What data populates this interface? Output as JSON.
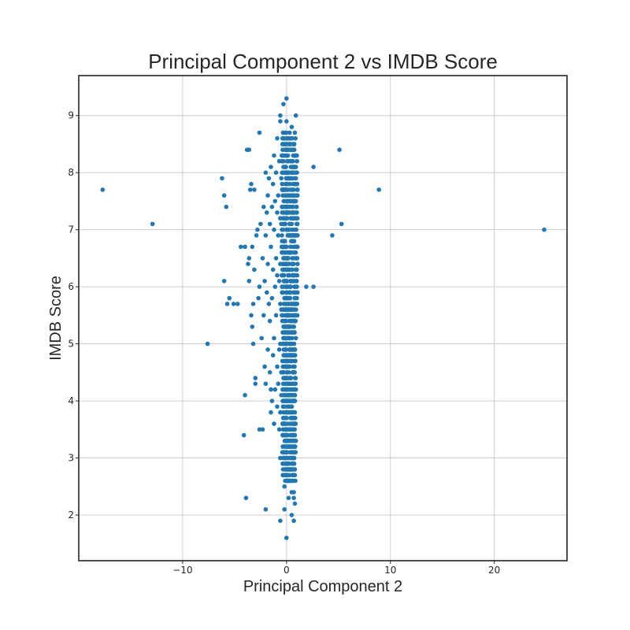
{
  "chart_data": {
    "type": "scatter",
    "title": "Principal Component 2 vs IMDB Score",
    "xlabel": "Principal Component 2",
    "ylabel": "IMDB Score",
    "xlim": [
      -20,
      27
    ],
    "ylim": [
      1.2,
      9.7
    ],
    "xticks": [
      -10,
      0,
      10,
      20
    ],
    "xtick_labels": [
      "−10",
      "0",
      "10",
      "20"
    ],
    "yticks": [
      2,
      3,
      4,
      5,
      6,
      7,
      8,
      9
    ],
    "ytick_labels": [
      "2",
      "3",
      "4",
      "5",
      "6",
      "7",
      "8",
      "9"
    ],
    "grid": true,
    "marker_color": "#1f77b4",
    "series": [
      {
        "points": [
          [
            -17.7,
            7.7
          ],
          [
            -12.9,
            7.1
          ],
          [
            -7.6,
            5.0
          ],
          [
            24.8,
            7.0
          ],
          [
            8.9,
            7.7
          ],
          [
            5.3,
            7.1
          ],
          [
            5.1,
            8.4
          ],
          [
            4.4,
            6.9
          ],
          [
            2.6,
            8.1
          ],
          [
            2.6,
            6.0
          ],
          [
            1.9,
            6.0
          ],
          [
            -6.2,
            7.9
          ],
          [
            -6.0,
            7.6
          ],
          [
            -5.8,
            7.4
          ],
          [
            -6.0,
            6.1
          ],
          [
            -5.7,
            5.7
          ],
          [
            -5.5,
            5.8
          ],
          [
            -5.1,
            5.7
          ],
          [
            -4.7,
            5.7
          ],
          [
            -4.4,
            6.7
          ],
          [
            -4.0,
            6.7
          ],
          [
            -4.0,
            4.1
          ],
          [
            -4.1,
            3.4
          ],
          [
            -3.9,
            2.3
          ],
          [
            -3.8,
            8.4
          ],
          [
            -3.6,
            8.4
          ],
          [
            -3.4,
            7.8
          ],
          [
            -3.5,
            7.7
          ],
          [
            -3.1,
            7.7
          ],
          [
            -3.2,
            5.0
          ],
          [
            -3.0,
            4.4
          ],
          [
            -2.6,
            3.5
          ],
          [
            -2.3,
            3.5
          ],
          [
            -2.0,
            2.1
          ],
          [
            -1.5,
            4.2
          ],
          [
            -0.6,
            1.9
          ],
          [
            0.7,
            1.9
          ],
          [
            0.0,
            1.6
          ],
          [
            0.8,
            2.2
          ],
          [
            -0.2,
            2.5
          ],
          [
            -0.6,
            3.0
          ],
          [
            -2.6,
            8.7
          ],
          [
            0.0,
            9.3
          ],
          [
            -0.3,
            9.2
          ],
          [
            -0.6,
            9.0
          ],
          [
            0.9,
            9.0
          ],
          [
            -3.0,
            4.3
          ],
          [
            -3.3,
            5.3
          ],
          [
            -3.4,
            5.5
          ],
          [
            -0.6,
            8.9
          ],
          [
            0.0,
            8.9
          ],
          [
            0.5,
            8.8
          ],
          [
            -0.9,
            8.6
          ],
          [
            0.3,
            8.6
          ],
          [
            -0.4,
            8.5
          ],
          [
            0.7,
            8.5
          ],
          [
            -1.2,
            8.3
          ],
          [
            0.1,
            8.3
          ],
          [
            1.0,
            8.3
          ],
          [
            -0.7,
            8.2
          ],
          [
            0.4,
            8.2
          ],
          [
            -1.5,
            8.1
          ],
          [
            -0.2,
            8.1
          ],
          [
            0.9,
            8.1
          ],
          [
            -2.0,
            8.0
          ],
          [
            -1.0,
            8.0
          ],
          [
            0.1,
            8.0
          ],
          [
            0.8,
            8.0
          ],
          [
            -1.7,
            7.9
          ],
          [
            -0.5,
            7.9
          ],
          [
            0.6,
            7.9
          ],
          [
            -1.3,
            7.8
          ],
          [
            -0.1,
            7.8
          ],
          [
            1.0,
            7.8
          ],
          [
            -1.8,
            7.6
          ],
          [
            -0.8,
            7.6
          ],
          [
            0.3,
            7.6
          ],
          [
            -1.1,
            7.5
          ],
          [
            0.0,
            7.5
          ],
          [
            0.9,
            7.5
          ],
          [
            -2.2,
            7.4
          ],
          [
            -1.4,
            7.4
          ],
          [
            -0.3,
            7.4
          ],
          [
            0.6,
            7.4
          ],
          [
            -1.9,
            7.3
          ],
          [
            -0.9,
            7.3
          ],
          [
            0.2,
            7.3
          ],
          [
            1.0,
            7.3
          ],
          [
            -2.5,
            7.1
          ],
          [
            -1.6,
            7.1
          ],
          [
            -0.5,
            7.1
          ],
          [
            0.5,
            7.1
          ],
          [
            -2.8,
            7.0
          ],
          [
            -1.2,
            7.0
          ],
          [
            0.0,
            7.0
          ],
          [
            0.9,
            7.0
          ],
          [
            -2.9,
            6.9
          ],
          [
            -2.0,
            6.9
          ],
          [
            -0.8,
            6.9
          ],
          [
            0.3,
            6.9
          ],
          [
            -3.3,
            6.7
          ],
          [
            -1.5,
            6.7
          ],
          [
            -0.2,
            6.7
          ],
          [
            0.8,
            6.7
          ],
          [
            -3.6,
            6.5
          ],
          [
            -2.3,
            6.5
          ],
          [
            -1.0,
            6.5
          ],
          [
            0.1,
            6.5
          ],
          [
            1.0,
            6.5
          ],
          [
            -3.7,
            6.4
          ],
          [
            -1.8,
            6.4
          ],
          [
            -0.6,
            6.4
          ],
          [
            0.5,
            6.4
          ],
          [
            -3.1,
            6.3
          ],
          [
            -1.3,
            6.3
          ],
          [
            -0.1,
            6.3
          ],
          [
            0.9,
            6.3
          ],
          [
            -3.6,
            6.1
          ],
          [
            -2.1,
            6.1
          ],
          [
            -0.7,
            6.1
          ],
          [
            0.4,
            6.1
          ],
          [
            -2.6,
            6.0
          ],
          [
            -1.1,
            6.0
          ],
          [
            0.0,
            6.0
          ],
          [
            1.0,
            6.0
          ],
          [
            -1.9,
            5.9
          ],
          [
            -0.4,
            5.9
          ],
          [
            0.7,
            5.9
          ],
          [
            -2.7,
            5.8
          ],
          [
            -1.4,
            5.8
          ],
          [
            -0.2,
            5.8
          ],
          [
            0.8,
            5.8
          ],
          [
            -3.2,
            5.7
          ],
          [
            -1.7,
            5.7
          ],
          [
            -0.6,
            5.7
          ],
          [
            0.5,
            5.7
          ],
          [
            -2.2,
            5.5
          ],
          [
            -1.0,
            5.5
          ],
          [
            0.1,
            5.5
          ],
          [
            0.9,
            5.5
          ],
          [
            -1.6,
            5.4
          ],
          [
            -0.4,
            5.4
          ],
          [
            0.6,
            5.4
          ],
          [
            -2.4,
            5.1
          ],
          [
            -1.2,
            5.1
          ],
          [
            -0.1,
            5.1
          ],
          [
            0.9,
            5.1
          ],
          [
            -1.8,
            4.9
          ],
          [
            -0.7,
            4.9
          ],
          [
            0.4,
            4.9
          ],
          [
            -1.3,
            4.8
          ],
          [
            -0.2,
            4.8
          ],
          [
            0.8,
            4.8
          ],
          [
            -2.1,
            4.6
          ],
          [
            -0.9,
            4.6
          ],
          [
            0.3,
            4.6
          ],
          [
            -1.6,
            4.5
          ],
          [
            -0.5,
            4.5
          ],
          [
            0.6,
            4.5
          ],
          [
            -2.0,
            4.3
          ],
          [
            -0.8,
            4.3
          ],
          [
            0.2,
            4.3
          ],
          [
            -1.1,
            4.2
          ],
          [
            0.0,
            4.2
          ],
          [
            0.9,
            4.2
          ],
          [
            -1.4,
            4.0
          ],
          [
            -0.3,
            4.0
          ],
          [
            0.7,
            4.0
          ],
          [
            -0.9,
            3.9
          ],
          [
            0.4,
            3.9
          ],
          [
            -1.5,
            3.8
          ],
          [
            -0.6,
            3.8
          ],
          [
            0.6,
            3.8
          ],
          [
            -1.2,
            3.6
          ],
          [
            -0.1,
            3.6
          ],
          [
            0.8,
            3.6
          ],
          [
            -0.7,
            3.5
          ],
          [
            0.4,
            3.5
          ],
          [
            -0.3,
            3.4
          ],
          [
            0.8,
            3.4
          ],
          [
            0.1,
            3.3
          ],
          [
            0.9,
            3.3
          ],
          [
            -0.4,
            3.1
          ],
          [
            0.3,
            3.2
          ],
          [
            0.6,
            3.0
          ],
          [
            -0.1,
            2.9
          ],
          [
            0.2,
            2.8
          ],
          [
            0.7,
            2.8
          ],
          [
            0.3,
            2.7
          ],
          [
            0.8,
            2.7
          ],
          [
            0.5,
            2.4
          ],
          [
            0.2,
            2.3
          ],
          [
            0.5,
            2.0
          ],
          [
            -0.2,
            2.1
          ],
          [
            0.7,
            2.3
          ],
          [
            0.7,
            2.4
          ],
          [
            -0.3,
            8.7
          ],
          [
            0.3,
            8.7
          ],
          [
            -0.1,
            8.4
          ],
          [
            0.6,
            8.4
          ],
          [
            -0.4,
            7.7
          ],
          [
            0.5,
            7.7
          ],
          [
            -0.6,
            7.2
          ],
          [
            0.4,
            7.2
          ],
          [
            -0.3,
            6.8
          ],
          [
            0.6,
            6.8
          ],
          [
            -0.4,
            6.6
          ],
          [
            0.2,
            6.6
          ],
          [
            -0.9,
            6.2
          ],
          [
            0.6,
            6.2
          ],
          [
            -0.5,
            5.6
          ],
          [
            0.3,
            5.6
          ],
          [
            -0.2,
            5.3
          ],
          [
            0.5,
            5.3
          ],
          [
            -0.6,
            5.0
          ],
          [
            0.4,
            5.0
          ],
          [
            -0.4,
            4.7
          ],
          [
            0.5,
            4.7
          ],
          [
            -0.3,
            4.4
          ],
          [
            0.4,
            4.4
          ],
          [
            -0.5,
            4.1
          ],
          [
            0.3,
            4.1
          ],
          [
            -0.2,
            3.7
          ],
          [
            0.5,
            3.7
          ],
          [
            0.0,
            3.1
          ],
          [
            0.5,
            3.1
          ]
        ]
      }
    ]
  }
}
